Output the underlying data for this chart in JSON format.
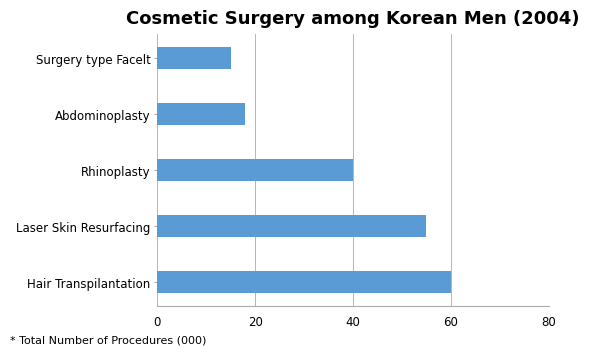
{
  "title": "Cosmetic Surgery among Korean Men (2004)",
  "categories": [
    "Hair Transpilantation",
    "Laser Skin Resurfacing",
    "Rhinoplasty",
    "Abdominoplasty",
    "Surgery type Facelt"
  ],
  "values": [
    60,
    55,
    40,
    18,
    15
  ],
  "bar_color": "#5B9BD5",
  "xlim": [
    0,
    80
  ],
  "xticks": [
    0,
    20,
    40,
    60,
    80
  ],
  "footnote": "* Total Number of Procedures (000)",
  "title_fontsize": 13,
  "label_fontsize": 8.5,
  "tick_fontsize": 8.5,
  "footnote_fontsize": 8,
  "background_color": "#ffffff",
  "bar_height": 0.4
}
